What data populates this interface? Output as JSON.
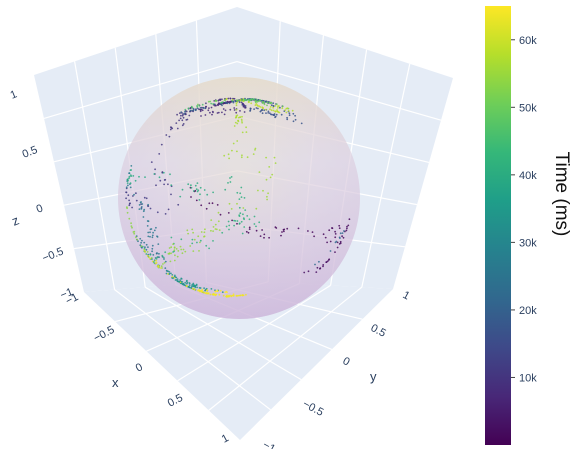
{
  "chart_data": {
    "type": "scatter3d",
    "title": "",
    "axes": {
      "x": {
        "title": "x",
        "range": [
          -1,
          1
        ],
        "ticks": [
          "−1",
          "−0.5",
          "0",
          "0.5",
          "1"
        ]
      },
      "y": {
        "title": "y",
        "range": [
          -1,
          1
        ],
        "ticks": [
          "−1",
          "−0.5",
          "0",
          "0.5",
          "1"
        ]
      },
      "z": {
        "title": "z",
        "range": [
          -1,
          1
        ],
        "ticks": [
          "−1",
          "−0.5",
          "0",
          "0.5",
          "1"
        ]
      }
    },
    "surface": {
      "shape": "unit sphere",
      "opacity": 0.25,
      "colorscale": "viridis"
    },
    "trajectory": {
      "description_of_marks": "dotted trajectory points on the unit sphere surface, colored by time",
      "time_range_ms": [
        0,
        65000
      ]
    },
    "colorbar": {
      "title": "Time (ms)",
      "range": [
        0,
        65000
      ],
      "colorscale": "Viridis",
      "ticks": [
        {
          "value": 10000,
          "label": "10k"
        },
        {
          "value": 20000,
          "label": "20k"
        },
        {
          "value": 30000,
          "label": "30k"
        },
        {
          "value": 40000,
          "label": "40k"
        },
        {
          "value": 50000,
          "label": "50k"
        },
        {
          "value": 60000,
          "label": "60k"
        }
      ]
    },
    "grid": true,
    "legend": "none"
  },
  "colors": {
    "scene_bg": "#e5ecf6",
    "grid": "#ffffff",
    "tick_text": "#2a3f5f"
  }
}
